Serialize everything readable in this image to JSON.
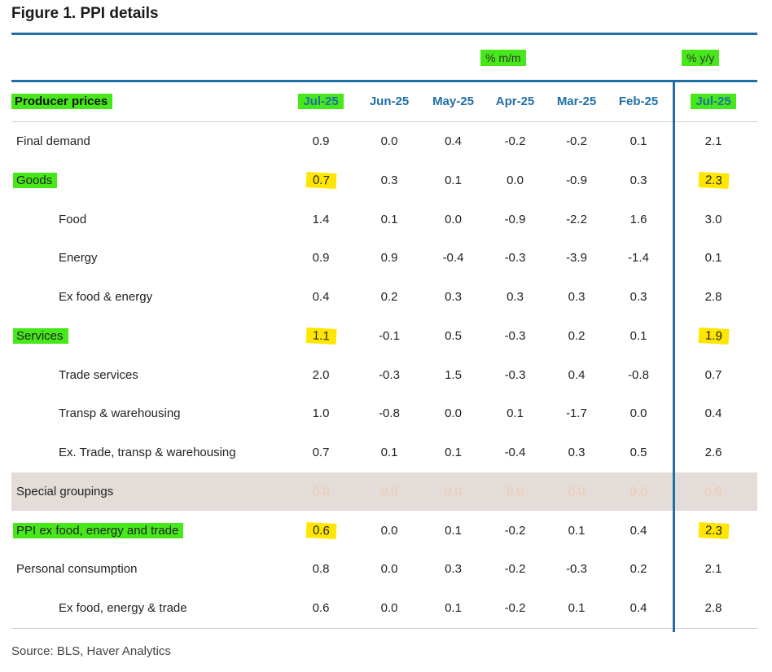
{
  "title": "Figure 1. PPI details",
  "group_mm": "% m/m",
  "group_yy": "% y/y",
  "header": [
    "Producer prices",
    "Jul-25",
    "Jun-25",
    "May-25",
    "Apr-25",
    "Mar-25",
    "Feb-25",
    "Jul-25"
  ],
  "rows": [
    {
      "label": "Final demand",
      "values": [
        "0.9",
        "0.0",
        "0.4",
        "-0.2",
        "-0.2",
        "0.1",
        "2.1"
      ]
    },
    {
      "label": "Goods",
      "values": [
        "0.7",
        "0.3",
        "0.1",
        "0.0",
        "-0.9",
        "0.3",
        "2.3"
      ]
    },
    {
      "label": "Food",
      "values": [
        "1.4",
        "0.1",
        "0.0",
        "-0.9",
        "-2.2",
        "1.6",
        "3.0"
      ]
    },
    {
      "label": "Energy",
      "values": [
        "0.9",
        "0.9",
        "-0.4",
        "-0.3",
        "-3.9",
        "-1.4",
        "0.1"
      ]
    },
    {
      "label": "Ex food & energy",
      "values": [
        "0.4",
        "0.2",
        "0.3",
        "0.3",
        "0.3",
        "0.3",
        "2.8"
      ]
    },
    {
      "label": "Services",
      "values": [
        "1.1",
        "-0.1",
        "0.5",
        "-0.3",
        "0.2",
        "0.1",
        "1.9"
      ]
    },
    {
      "label": "Trade services",
      "values": [
        "2.0",
        "-0.3",
        "1.5",
        "-0.3",
        "0.4",
        "-0.8",
        "0.7"
      ]
    },
    {
      "label": "Transp & warehousing",
      "values": [
        "1.0",
        "-0.8",
        "0.0",
        "0.1",
        "-1.7",
        "0.0",
        "0.4"
      ]
    },
    {
      "label": "Ex. Trade, transp & warehousing",
      "values": [
        "0.7",
        "0.1",
        "0.1",
        "-0.4",
        "0.3",
        "0.5",
        "2.6"
      ]
    },
    {
      "label": "Special groupings",
      "values": [
        "0.0",
        "0.0",
        "0.0",
        "0.0",
        "0.0",
        "0.0",
        "0.0"
      ]
    },
    {
      "label": "PPI ex food, energy and trade",
      "values": [
        "0.6",
        "0.0",
        "0.1",
        "-0.2",
        "0.1",
        "0.4",
        "2.3"
      ]
    },
    {
      "label": "Personal consumption",
      "values": [
        "0.8",
        "0.0",
        "0.3",
        "-0.2",
        "-0.3",
        "0.2",
        "2.1"
      ]
    },
    {
      "label": "Ex food, energy & trade",
      "values": [
        "0.6",
        "0.0",
        "0.1",
        "-0.2",
        "0.1",
        "0.4",
        "2.8"
      ]
    }
  ],
  "source": "Source: BLS, Haver Analytics",
  "colors": {
    "accent": "#1f6fa6",
    "highlight_green": "#46e81a",
    "highlight_yellow": "#ffe600",
    "special_row_bg": "#e3dcd9"
  }
}
